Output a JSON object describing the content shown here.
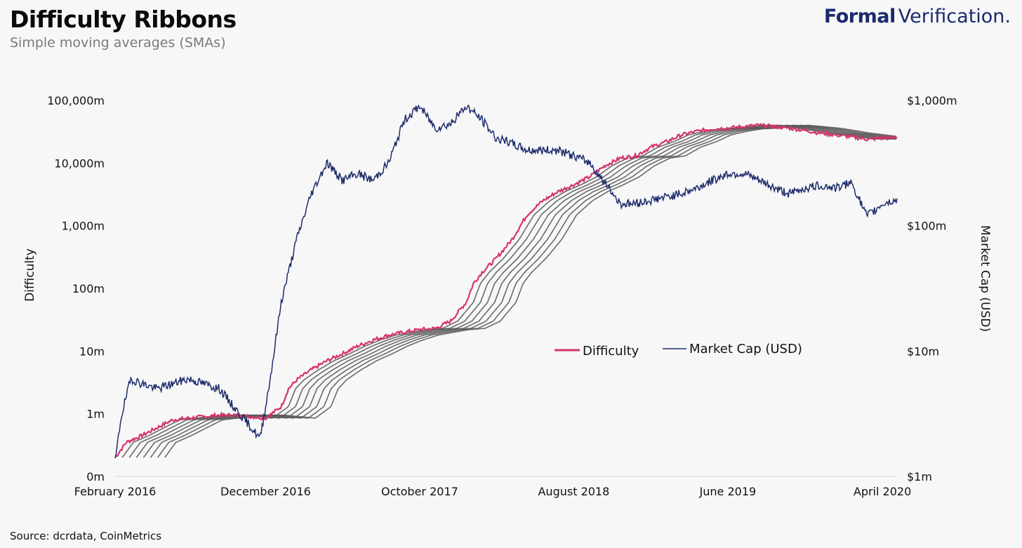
{
  "header": {
    "title": "Difficulty Ribbons",
    "subtitle": "Simple moving averages (SMAs)",
    "brand_bold": "Formal",
    "brand_light": "Verification."
  },
  "footer": {
    "source": "Source: dcrdata, CoinMetrics"
  },
  "colors": {
    "difficulty": "#d6336c",
    "market_cap": "#1f2d6b",
    "sma": "#5a5a5a",
    "brand": "#1a2a6c"
  },
  "chart_data": {
    "type": "line",
    "title": "Difficulty Ribbons",
    "subtitle": "Simple moving averages (SMAs)",
    "x_ticks": [
      "February 2016",
      "December 2016",
      "October 2017",
      "August 2018",
      "June 2019",
      "April 2020"
    ],
    "x_range": [
      "2016-02-08",
      "2020-04-30"
    ],
    "y_left": {
      "label": "Difficulty",
      "scale": "log",
      "ticks": [
        "0m",
        "1m",
        "10m",
        "100m",
        "1,000m",
        "10,000m",
        "100,000m"
      ]
    },
    "y_right": {
      "label": "Market Cap (USD)",
      "scale": "log",
      "ticks": [
        "$1m",
        "$10m",
        "$100m",
        "$1,000m"
      ]
    },
    "legend": [
      "Difficulty",
      "Market Cap (USD)"
    ],
    "legend_position": "center-right",
    "series": [
      {
        "name": "Difficulty",
        "axis": "left",
        "x": [
          "2016-02-08",
          "2016-03-01",
          "2016-04-01",
          "2016-05-01",
          "2016-06-01",
          "2016-07-01",
          "2016-08-01",
          "2016-09-01",
          "2016-10-01",
          "2016-11-01",
          "2016-12-01",
          "2017-01-01",
          "2017-01-15",
          "2017-02-01",
          "2017-03-01",
          "2017-04-01",
          "2017-05-01",
          "2017-06-01",
          "2017-07-01",
          "2017-08-01",
          "2017-09-01",
          "2017-10-01",
          "2017-11-01",
          "2017-12-01",
          "2018-01-01",
          "2018-01-15",
          "2018-02-01",
          "2018-03-01",
          "2018-04-01",
          "2018-05-01",
          "2018-06-01",
          "2018-07-01",
          "2018-08-01",
          "2018-09-01",
          "2018-10-01",
          "2018-11-01",
          "2018-12-01",
          "2019-01-01",
          "2019-02-01",
          "2019-03-01",
          "2019-04-01",
          "2019-05-01",
          "2019-06-01",
          "2019-07-01",
          "2019-08-01",
          "2019-09-01",
          "2019-10-01",
          "2019-11-01",
          "2019-12-01",
          "2020-01-01",
          "2020-02-01",
          "2020-03-01",
          "2020-04-01",
          "2020-04-30"
        ],
        "values": [
          0.2,
          0.35,
          0.45,
          0.6,
          0.8,
          0.85,
          0.9,
          0.95,
          0.95,
          0.9,
          0.85,
          1.3,
          2.5,
          3.5,
          5.0,
          7.0,
          9.0,
          12.0,
          15.0,
          18.0,
          20.0,
          22.0,
          23.0,
          30.0,
          60.0,
          120.0,
          180.0,
          300.0,
          600.0,
          1500.0,
          2500.0,
          3500.0,
          4500.0,
          6000.0,
          9000.0,
          12000.0,
          13000.0,
          18000.0,
          22000.0,
          28000.0,
          32000.0,
          35000.0,
          36000.0,
          38000.0,
          40000.0,
          38000.0,
          36000.0,
          33000.0,
          30000.0,
          28000.0,
          26000.0,
          24000.0,
          25000.0,
          26000.0
        ]
      },
      {
        "name": "Market Cap (USD)",
        "axis": "right",
        "x": [
          "2016-02-08",
          "2016-02-20",
          "2016-03-10",
          "2016-04-01",
          "2016-05-01",
          "2016-06-01",
          "2016-07-01",
          "2016-08-01",
          "2016-09-01",
          "2016-10-01",
          "2016-11-01",
          "2016-11-20",
          "2016-12-10",
          "2017-01-01",
          "2017-02-01",
          "2017-03-01",
          "2017-04-01",
          "2017-05-01",
          "2017-06-01",
          "2017-07-01",
          "2017-08-01",
          "2017-09-01",
          "2017-10-01",
          "2017-11-01",
          "2017-12-01",
          "2018-01-01",
          "2018-02-01",
          "2018-03-01",
          "2018-04-01",
          "2018-05-01",
          "2018-06-01",
          "2018-07-01",
          "2018-08-01",
          "2018-09-01",
          "2018-10-01",
          "2018-11-01",
          "2018-12-01",
          "2019-01-01",
          "2019-02-01",
          "2019-03-01",
          "2019-04-01",
          "2019-05-01",
          "2019-06-01",
          "2019-07-01",
          "2019-08-01",
          "2019-09-01",
          "2019-10-01",
          "2019-11-01",
          "2019-12-01",
          "2020-01-01",
          "2020-02-01",
          "2020-03-01",
          "2020-03-15",
          "2020-04-01",
          "2020-04-30"
        ],
        "values": [
          1.3,
          3.0,
          6.0,
          5.5,
          5.0,
          5.5,
          6.0,
          5.5,
          5.0,
          3.5,
          2.5,
          2.0,
          6.0,
          25.0,
          80.0,
          180.0,
          320.0,
          230.0,
          260.0,
          230.0,
          320.0,
          700.0,
          900.0,
          600.0,
          650.0,
          900.0,
          700.0,
          500.0,
          450.0,
          400.0,
          400.0,
          400.0,
          360.0,
          320.0,
          220.0,
          150.0,
          150.0,
          160.0,
          170.0,
          180.0,
          200.0,
          230.0,
          260.0,
          260.0,
          230.0,
          200.0,
          180.0,
          200.0,
          210.0,
          200.0,
          220.0,
          120.0,
          130.0,
          150.0,
          160.0
        ]
      }
    ],
    "sma_ribbons": {
      "count": 7,
      "lags_days": [
        14,
        28,
        42,
        56,
        70,
        84,
        98
      ]
    }
  }
}
